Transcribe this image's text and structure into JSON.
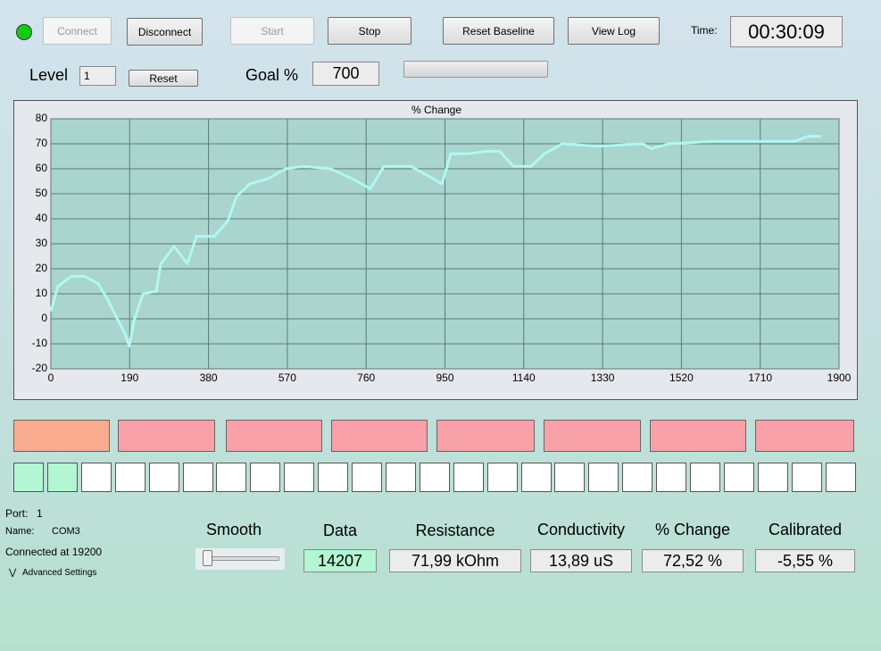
{
  "toolbar": {
    "buttons": [
      "Connect",
      "Disconnect",
      "Start",
      "Stop",
      "Reset Baseline",
      "View Log"
    ],
    "time_label": "Time:",
    "time_value": "00:30:09"
  },
  "level": {
    "label": "Level",
    "value": "1",
    "reset": "Reset",
    "goal_label": "Goal %",
    "goal_value": "700"
  },
  "chart_data": {
    "type": "line",
    "title": "% Change",
    "color": "#b2f7f2",
    "grid": true,
    "x": [
      0,
      17,
      49,
      82,
      114,
      136,
      157,
      179,
      189,
      200,
      222,
      254,
      265,
      297,
      329,
      351,
      394,
      426,
      448,
      480,
      523,
      566,
      609,
      674,
      727,
      770,
      803,
      867,
      900,
      943,
      964,
      1007,
      1050,
      1082,
      1115,
      1158,
      1190,
      1233,
      1319,
      1427,
      1448,
      1491,
      1599,
      1706,
      1793,
      1825,
      1857
    ],
    "values": [
      3,
      13,
      17,
      17,
      14,
      8,
      1,
      -6,
      -11,
      -1,
      10,
      11,
      22,
      29,
      22,
      33,
      33,
      39,
      49,
      54,
      56,
      60,
      61,
      60,
      56,
      52,
      61,
      61,
      58,
      54,
      66,
      66,
      67,
      67,
      61,
      61,
      66,
      70,
      69,
      70,
      68,
      70,
      71,
      71,
      71,
      73,
      73
    ],
    "xlim": [
      0,
      1900
    ],
    "xticks": [
      0,
      190,
      380,
      570,
      760,
      950,
      1140,
      1330,
      1520,
      1710,
      1900
    ],
    "ylim": [
      -20,
      80
    ],
    "yticks": [
      -20,
      -10,
      0,
      10,
      20,
      30,
      40,
      50,
      60,
      70,
      80
    ]
  },
  "status": {
    "port_label": "Port:",
    "port_value": "1",
    "name_label": "Name:",
    "name_value": "COM3",
    "connected": "Connected at 19200",
    "advanced": "Advanced Settings"
  },
  "readouts": [
    {
      "label": "Smooth"
    },
    {
      "label": "Data",
      "value": "14207"
    },
    {
      "label": "Resistance",
      "value": "71,99 kOhm"
    },
    {
      "label": "Conductivity",
      "value": "13,89 uS"
    },
    {
      "label": "% Change",
      "value": "72,52 %"
    },
    {
      "label": "Calibrated",
      "value": "-5,55 %"
    }
  ]
}
